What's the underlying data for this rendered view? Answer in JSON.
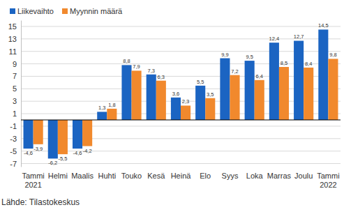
{
  "chart_data": {
    "type": "bar",
    "categories": [
      "Tammi\n2021",
      "Helmi",
      "Maalis",
      "Huhti",
      "Touko",
      "Kesä",
      "Heinä",
      "Elo",
      "Syys",
      "Loka",
      "Marras",
      "Joulu",
      "Tammi\n2022"
    ],
    "series": [
      {
        "name": "Liikevaihto",
        "color": "#1b64c2",
        "values": [
          -4.6,
          -6.2,
          -4.6,
          1.3,
          8.8,
          7.3,
          3.6,
          5.5,
          9.9,
          9.5,
          12.4,
          12.7,
          14.5
        ],
        "value_labels": [
          "-4,6",
          "-6,2",
          "-4,6",
          "1,3",
          "8,8",
          "7,3",
          "3,6",
          "5,5",
          "9,9",
          "9,5",
          "12,4",
          "12,7",
          "14,5"
        ]
      },
      {
        "name": "Myynnin määrä",
        "color": "#f1892d",
        "values": [
          -3.9,
          -5.5,
          -4.2,
          1.8,
          7.9,
          6.3,
          2.3,
          3.5,
          7.2,
          6.4,
          8.5,
          8.4,
          9.8
        ],
        "value_labels": [
          "-3,9",
          "-5,5",
          "-4,2",
          "1,8",
          "7,9",
          "6,3",
          "2,3",
          "3,5",
          "7,2",
          "6,4",
          "8,5",
          "8,4",
          "9,8"
        ]
      }
    ],
    "ylim": [
      -7.5,
      16
    ],
    "yticks": [
      -7,
      -5,
      -3,
      -1,
      1,
      3,
      5,
      7,
      9,
      11,
      13,
      15
    ],
    "grid": true,
    "legend": "top-left",
    "data_labels": true,
    "source": "Lähde: Tilastokeskus"
  }
}
